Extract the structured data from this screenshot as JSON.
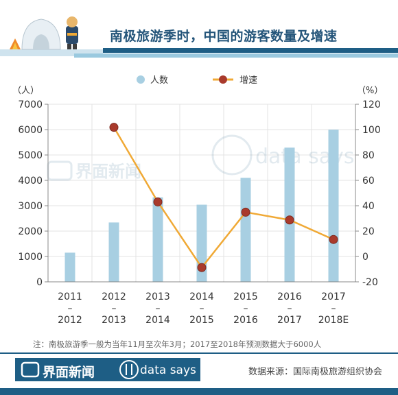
{
  "header": {
    "title": "南极旅游季时，中国的游客数量及增速"
  },
  "legend": {
    "bar_label": "人数",
    "line_label": "增速"
  },
  "axes": {
    "left_unit": "（人）",
    "right_unit": "（%）"
  },
  "watermark": {
    "cn": "界面新闻",
    "en": "data says"
  },
  "colors": {
    "bar": "#a8cfe2",
    "line": "#f0a935",
    "marker": "#a93a2c",
    "brand": "#1e5e85"
  },
  "chart_data": {
    "type": "bar+line",
    "categories": [
      [
        "2011",
        "–",
        "2012"
      ],
      [
        "2012",
        "–",
        "2013"
      ],
      [
        "2013",
        "–",
        "2014"
      ],
      [
        "2014",
        "–",
        "2015"
      ],
      [
        "2015",
        "–",
        "2016"
      ],
      [
        "2016",
        "–",
        "2017"
      ],
      [
        "2017",
        "–",
        "2018E"
      ]
    ],
    "series": [
      {
        "name": "人数",
        "kind": "bar",
        "axis": "left",
        "values": [
          1150,
          2340,
          3330,
          3040,
          4100,
          5290,
          6000
        ]
      },
      {
        "name": "增速",
        "kind": "line",
        "axis": "right",
        "values": [
          null,
          101.8,
          43.0,
          -8.7,
          34.9,
          28.8,
          13.4
        ]
      }
    ],
    "left_axis": {
      "min": 0,
      "max": 7000,
      "ticks": [
        0,
        1000,
        2000,
        3000,
        4000,
        5000,
        6000,
        7000
      ]
    },
    "right_axis": {
      "min": -20,
      "max": 120,
      "ticks": [
        -20,
        0,
        20,
        40,
        60,
        80,
        100,
        120
      ]
    },
    "grid": true,
    "legend_position": "top-center"
  },
  "footer": {
    "note": "注：南极旅游季一般为当年11月至次年3月；2017至2018年预测数据大于6000人",
    "logo_cn": "界面新闻",
    "logo_en": "data says",
    "source": "数据来源：国际南极旅游组织协会"
  }
}
